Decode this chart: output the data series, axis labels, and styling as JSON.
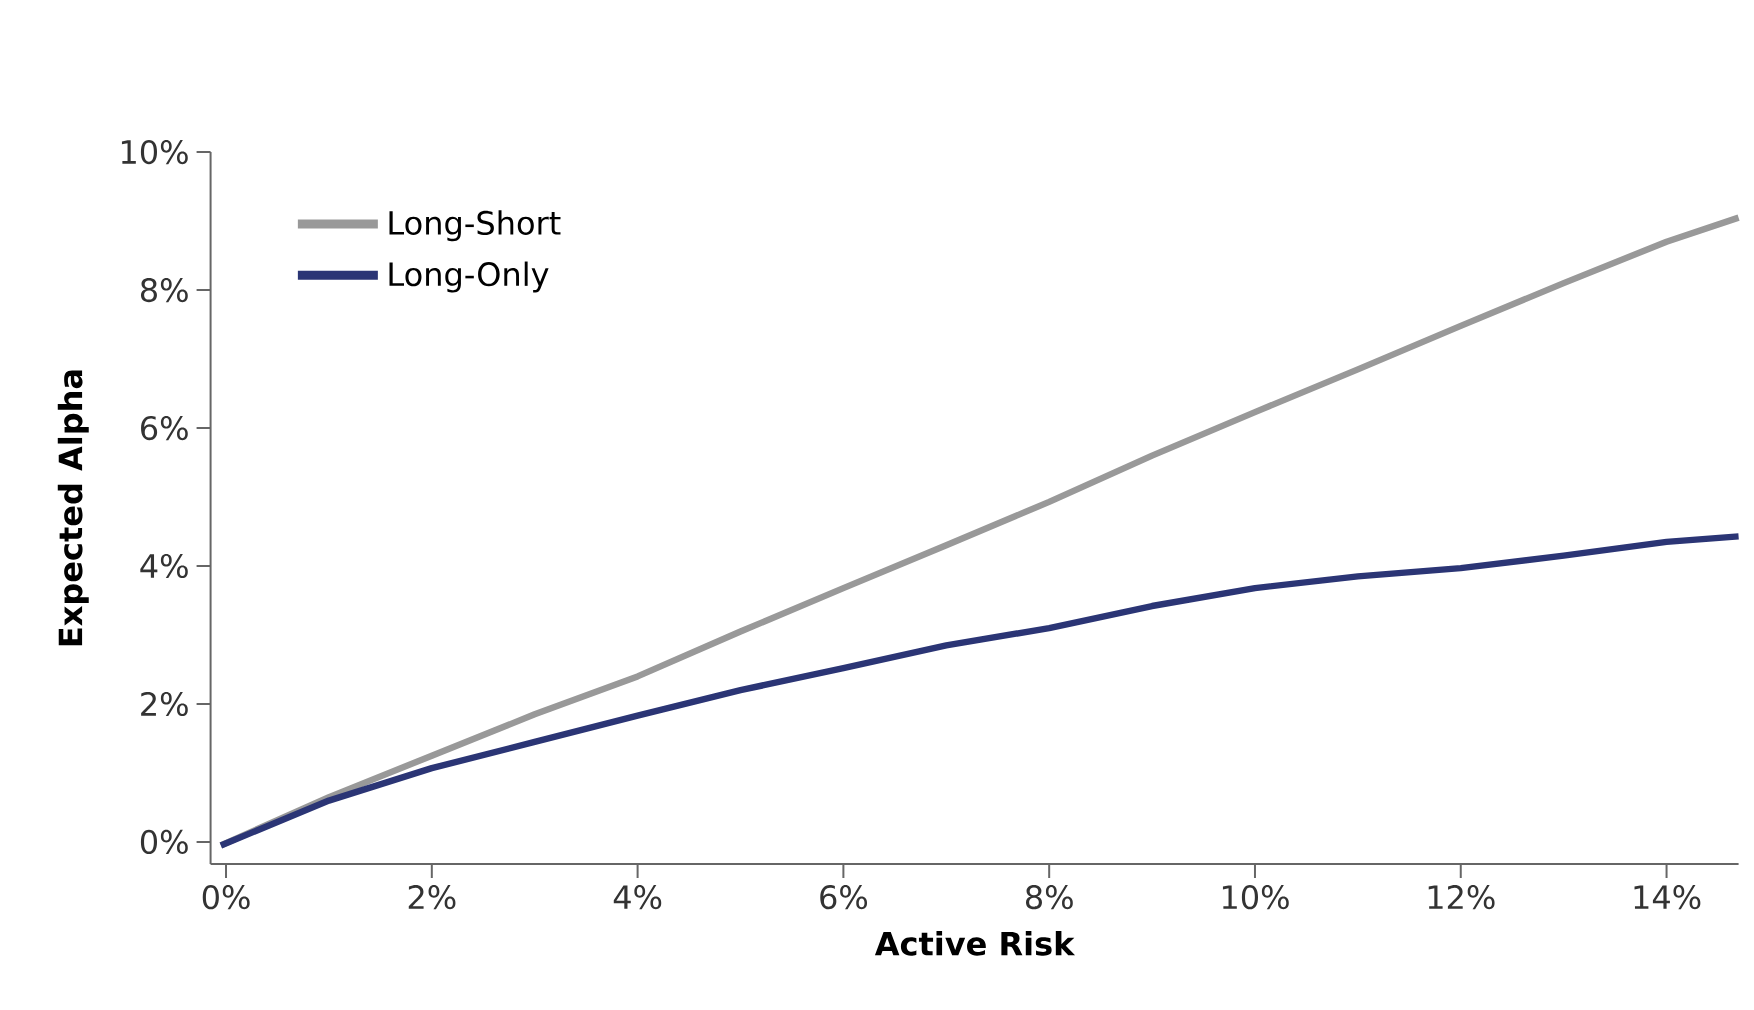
{
  "chart_data": {
    "type": "line",
    "xlabel": "Active Risk",
    "ylabel": "Expected Alpha",
    "xlim": [
      -0.15,
      14.7
    ],
    "ylim": [
      -0.32,
      10
    ],
    "xticks": [
      {
        "value": 0,
        "label": "0%"
      },
      {
        "value": 2,
        "label": "2%"
      },
      {
        "value": 4,
        "label": "4%"
      },
      {
        "value": 6,
        "label": "6%"
      },
      {
        "value": 8,
        "label": "8%"
      },
      {
        "value": 10,
        "label": "10%"
      },
      {
        "value": 12,
        "label": "12%"
      },
      {
        "value": 14,
        "label": "14%"
      }
    ],
    "yticks": [
      {
        "value": 0,
        "label": "0%"
      },
      {
        "value": 2,
        "label": "2%"
      },
      {
        "value": 4,
        "label": "4%"
      },
      {
        "value": 6,
        "label": "6%"
      },
      {
        "value": 8,
        "label": "8%"
      },
      {
        "value": 10,
        "label": "10%"
      }
    ],
    "x": [
      -0.05,
      1,
      2,
      3,
      4,
      5,
      6,
      7,
      8,
      9,
      10,
      11,
      12,
      13,
      14,
      14.7
    ],
    "series": [
      {
        "name": "Long-Short",
        "color": "#999999",
        "values": [
          -0.05,
          0.65,
          1.25,
          1.85,
          2.4,
          3.05,
          3.68,
          4.3,
          4.93,
          5.6,
          6.23,
          6.85,
          7.48,
          8.1,
          8.7,
          9.05
        ]
      },
      {
        "name": "Long-Only",
        "color": "#2b3575",
        "values": [
          -0.05,
          0.6,
          1.07,
          1.45,
          1.83,
          2.2,
          2.52,
          2.85,
          3.1,
          3.42,
          3.68,
          3.85,
          3.97,
          4.15,
          4.35,
          4.43
        ]
      }
    ],
    "legend": "top left",
    "grid": false,
    "marker": "none",
    "line_style": "solid"
  }
}
